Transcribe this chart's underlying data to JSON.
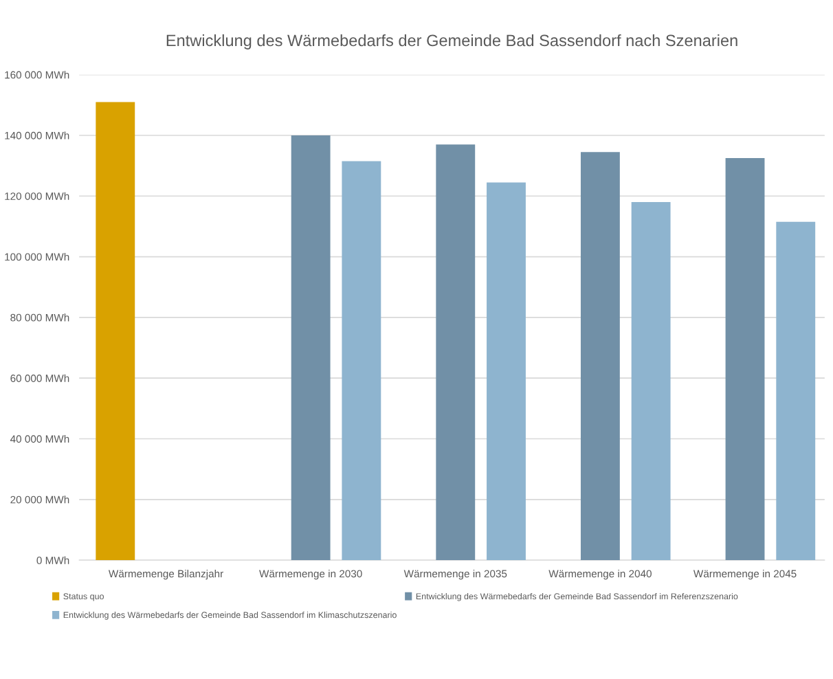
{
  "chart_data": {
    "type": "bar",
    "title": "Entwicklung des Wärmebedarfs der Gemeinde Bad Sassendorf nach Szenarien",
    "categories": [
      "Wärmemenge Bilanzjahr",
      "Wärmemenge in 2030",
      "Wärmemenge in 2035",
      "Wärmemenge in 2040",
      "Wärmemenge in 2045"
    ],
    "series": [
      {
        "name": "Status quo",
        "color": "#d9a200",
        "values": [
          151000,
          null,
          null,
          null,
          null
        ]
      },
      {
        "name": "Entwicklung des Wärmebedarfs der Gemeinde Bad Sassendorf im Referenzszenario",
        "color": "#7190a7",
        "values": [
          null,
          140000,
          137000,
          134500,
          132500
        ]
      },
      {
        "name": "Entwicklung des Wärmebedarfs der Gemeinde Bad Sassendorf im Klimaschutzszenario",
        "color": "#8eb4cf",
        "values": [
          null,
          131500,
          124500,
          118000,
          111500
        ]
      }
    ],
    "ylim": [
      0,
      160000
    ],
    "yticks": [
      {
        "value": 0,
        "label": "0 MWh"
      },
      {
        "value": 20000,
        "label": "20 000 MWh"
      },
      {
        "value": 40000,
        "label": "40 000 MWh"
      },
      {
        "value": 60000,
        "label": "60 000 MWh"
      },
      {
        "value": 80000,
        "label": "80 000 MWh"
      },
      {
        "value": 100000,
        "label": "100 000 MWh"
      },
      {
        "value": 120000,
        "label": "120 000 MWh"
      },
      {
        "value": 140000,
        "label": "140 000 MWh"
      },
      {
        "value": 160000,
        "label": "160 000 MWh"
      }
    ],
    "grid": "y",
    "legend": "bottom"
  }
}
